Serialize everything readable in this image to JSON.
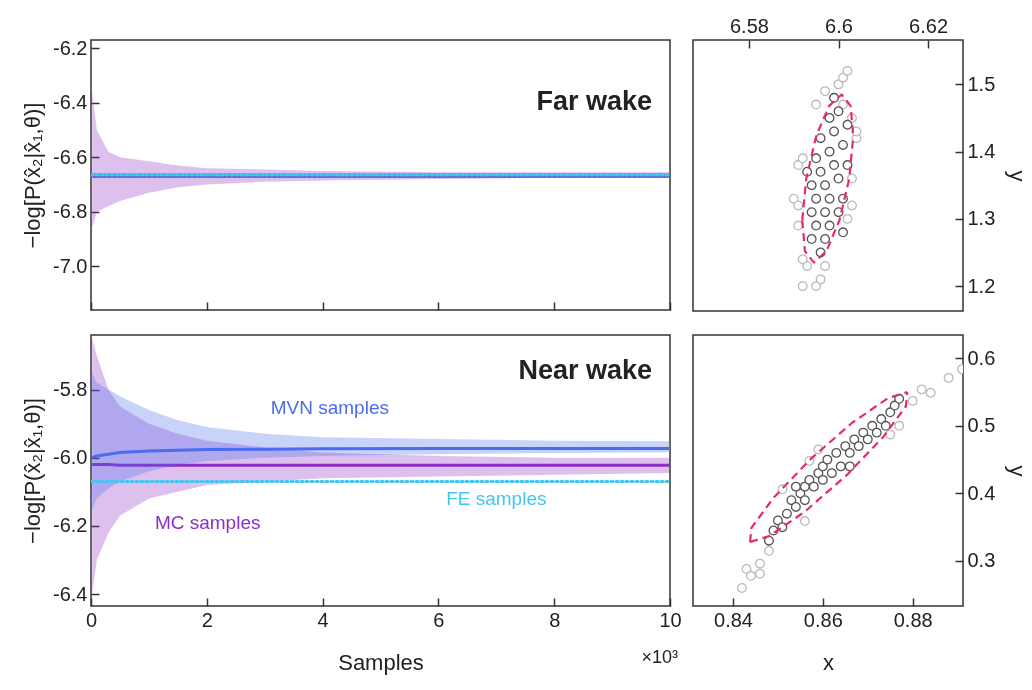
{
  "chart_data": [
    {
      "type": "line",
      "title": "Far wake",
      "ylabel": "−log[P(x̂₂|x̂₁,θ)]",
      "xlim": [
        0,
        10
      ],
      "ylim": [
        -7.16,
        -6.17
      ],
      "xticks": [
        0,
        2,
        4,
        6,
        8,
        10
      ],
      "yticks": [
        {
          "value": -7,
          "label": "-7.0"
        },
        -6.8,
        -6.6,
        -6.4,
        -6.2
      ],
      "tick_labels": "y",
      "series": [
        {
          "color": "#8e2ec8",
          "x": [
            0.02,
            0.1,
            0.3,
            0.5,
            1,
            1.5,
            2,
            3,
            4,
            6,
            8,
            10
          ],
          "values": [
            -6.67,
            -6.67,
            -6.67,
            -6.67,
            -6.67,
            -6.67,
            -6.67,
            -6.67,
            -6.67,
            -6.67,
            -6.67,
            -6.67
          ],
          "lower": [
            -6.86,
            -6.8,
            -6.78,
            -6.76,
            -6.73,
            -6.71,
            -6.7,
            -6.69,
            -6.685,
            -6.68,
            -6.675,
            -6.675
          ],
          "upper": [
            -6.36,
            -6.5,
            -6.58,
            -6.6,
            -6.615,
            -6.63,
            -6.64,
            -6.645,
            -6.65,
            -6.655,
            -6.655,
            -6.655
          ]
        },
        {
          "color": "#4a6cf0",
          "x": [
            0,
            10
          ],
          "values": [
            -6.665,
            -6.665
          ]
        },
        {
          "color": "#3ec8f0",
          "x": [
            0,
            10
          ],
          "values": [
            -6.665,
            -6.665
          ],
          "line_style": "dotted"
        }
      ]
    },
    {
      "type": "scatter",
      "ylabel": "y",
      "xlim": [
        6.5675,
        6.6278
      ],
      "ylim": [
        1.163,
        1.566
      ],
      "xticks": [
        6.58,
        6.6,
        6.62
      ],
      "yticks": [
        1.2,
        1.3,
        1.4,
        1.5
      ],
      "marker": "circle",
      "series": [
        {
          "color": "#bbbbbb",
          "x": [
            6.592,
            6.595,
            6.596,
            6.593,
            6.592,
            6.597,
            6.59,
            6.591,
            6.591,
            6.592,
            6.591,
            6.602,
            6.603,
            6.603,
            6.604,
            6.604,
            6.603,
            6.601,
            6.6,
            6.597,
            6.601,
            6.602,
            6.595
          ],
          "values": [
            1.2,
            1.2,
            1.21,
            1.23,
            1.24,
            1.23,
            1.33,
            1.32,
            1.38,
            1.39,
            1.29,
            1.3,
            1.32,
            1.36,
            1.42,
            1.43,
            1.45,
            1.47,
            1.5,
            1.49,
            1.51,
            1.52,
            1.47
          ]
        },
        {
          "color": "#555555",
          "x": [
            6.596,
            6.597,
            6.595,
            6.598,
            6.594,
            6.597,
            6.6,
            6.595,
            6.598,
            6.601,
            6.594,
            6.597,
            6.6,
            6.596,
            6.599,
            6.602,
            6.595,
            6.598,
            6.601,
            6.596,
            6.599,
            6.602,
            6.598,
            6.6,
            6.599,
            6.594,
            6.601,
            6.593
          ],
          "values": [
            1.25,
            1.27,
            1.29,
            1.29,
            1.31,
            1.31,
            1.31,
            1.33,
            1.33,
            1.33,
            1.35,
            1.35,
            1.36,
            1.37,
            1.38,
            1.38,
            1.39,
            1.4,
            1.41,
            1.42,
            1.43,
            1.44,
            1.45,
            1.46,
            1.48,
            1.27,
            1.28,
            1.37
          ]
        },
        {
          "type": "line",
          "marker": "none",
          "color": "#e8287a",
          "line_style": "dashed",
          "x": [
            6.5919,
            6.5928,
            6.595,
            6.5979,
            6.6007,
            6.6027,
            6.6033
          ],
          "values": [
            1.298,
            1.36,
            1.423,
            1.468,
            1.485,
            1.468,
            1.423
          ]
        },
        {
          "type": "line",
          "marker": "none",
          "color": "#e8287a",
          "line_style": "dashed",
          "x": [
            6.5919,
            6.5925,
            6.5945,
            6.5973,
            6.6002,
            6.6024,
            6.6033
          ],
          "values": [
            1.298,
            1.252,
            1.235,
            1.252,
            1.298,
            1.36,
            1.423
          ]
        }
      ]
    },
    {
      "type": "line",
      "title": "Near wake",
      "xlabel": "Samples",
      "ylabel": "−log[P(x̂₂|x̂₁,θ)]",
      "xlim": [
        0,
        10
      ],
      "ylim": [
        -6.435,
        -5.64
      ],
      "xticks": [
        0,
        2,
        4,
        6,
        8,
        10
      ],
      "yticks": [
        -6.4,
        -6.2,
        {
          "value": -6,
          "label": "-6.0"
        },
        -5.8
      ],
      "annotations": [
        "×10³"
      ],
      "series": [
        {
          "name": "MC samples",
          "color": "#8e2ec8",
          "x": [
            0.02,
            0.1,
            0.3,
            0.5,
            1,
            1.5,
            2,
            3,
            4,
            6,
            8,
            10
          ],
          "values": [
            -6.02,
            -6.02,
            -6.02,
            -6.022,
            -6.022,
            -6.022,
            -6.022,
            -6.022,
            -6.022,
            -6.022,
            -6.022,
            -6.022
          ],
          "lower": [
            -6.4,
            -6.3,
            -6.22,
            -6.17,
            -6.12,
            -6.1,
            -6.08,
            -6.07,
            -6.06,
            -6.055,
            -6.05,
            -6.045
          ],
          "upper": [
            -5.65,
            -5.7,
            -5.8,
            -5.85,
            -5.9,
            -5.93,
            -5.95,
            -5.97,
            -5.985,
            -5.995,
            -6.0,
            -6.0
          ]
        },
        {
          "name": "MVN samples",
          "color": "#4a6cf0",
          "x": [
            0.02,
            0.1,
            0.3,
            0.5,
            1,
            1.5,
            2,
            3,
            4,
            6,
            8,
            10
          ],
          "values": [
            -6.0,
            -5.995,
            -5.99,
            -5.985,
            -5.98,
            -5.978,
            -5.976,
            -5.975,
            -5.974,
            -5.973,
            -5.973,
            -5.973
          ],
          "lower": [
            -6.15,
            -6.12,
            -6.09,
            -6.07,
            -6.04,
            -6.02,
            -6.01,
            -6.0,
            -5.995,
            -5.99,
            -5.986,
            -5.984
          ],
          "upper": [
            -5.75,
            -5.78,
            -5.8,
            -5.82,
            -5.86,
            -5.89,
            -5.91,
            -5.93,
            -5.94,
            -5.945,
            -5.95,
            -5.952
          ]
        },
        {
          "name": "FE samples",
          "color": "#3ec8f0",
          "x": [
            0,
            10
          ],
          "values": [
            -6.07,
            -6.07
          ],
          "line_style": "dotted"
        }
      ]
    },
    {
      "type": "scatter",
      "xlabel": "x",
      "ylabel": "y",
      "xlim": [
        0.8311,
        0.8912
      ],
      "ylim": [
        0.2333,
        0.6345
      ],
      "xticks": [
        0.84,
        0.86,
        0.88
      ],
      "yticks": [
        0.3,
        0.4,
        0.5,
        0.6
      ],
      "marker": "circle",
      "series": [
        {
          "color": "#bbbbbb",
          "x": [
            0.842,
            0.843,
            0.844,
            0.846,
            0.846,
            0.848,
            0.891,
            0.888,
            0.884,
            0.882,
            0.88,
            0.877,
            0.875,
            0.859,
            0.857,
            0.851,
            0.856
          ],
          "values": [
            0.26,
            0.288,
            0.278,
            0.281,
            0.296,
            0.315,
            0.584,
            0.571,
            0.549,
            0.554,
            0.537,
            0.5,
            0.487,
            0.465,
            0.448,
            0.406,
            0.359
          ]
        },
        {
          "color": "#555555",
          "x": [
            0.848,
            0.849,
            0.85,
            0.851,
            0.852,
            0.853,
            0.854,
            0.855,
            0.856,
            0.856,
            0.857,
            0.858,
            0.859,
            0.86,
            0.86,
            0.861,
            0.862,
            0.863,
            0.864,
            0.865,
            0.866,
            0.867,
            0.868,
            0.869,
            0.87,
            0.871,
            0.872,
            0.873,
            0.874,
            0.875,
            0.876,
            0.877,
            0.854,
            0.866
          ],
          "values": [
            0.33,
            0.345,
            0.36,
            0.35,
            0.37,
            0.39,
            0.38,
            0.4,
            0.41,
            0.39,
            0.42,
            0.41,
            0.43,
            0.44,
            0.42,
            0.45,
            0.43,
            0.46,
            0.44,
            0.47,
            0.46,
            0.48,
            0.47,
            0.49,
            0.48,
            0.5,
            0.49,
            0.51,
            0.5,
            0.52,
            0.53,
            0.54,
            0.41,
            0.44
          ]
        },
        {
          "type": "line",
          "marker": "none",
          "color": "#e8287a",
          "line_style": "dashed",
          "x": [
            0.8438,
            0.8441,
            0.8491,
            0.8573,
            0.8666,
            0.8745,
            0.8788
          ],
          "values": [
            0.328,
            0.349,
            0.394,
            0.451,
            0.505,
            0.541,
            0.55
          ]
        },
        {
          "type": "line",
          "marker": "none",
          "color": "#e8287a",
          "line_style": "dashed",
          "x": [
            0.8438,
            0.8481,
            0.856,
            0.8653,
            0.8735,
            0.8785,
            0.8788
          ],
          "values": [
            0.328,
            0.337,
            0.373,
            0.427,
            0.484,
            0.529,
            0.55
          ]
        }
      ]
    }
  ]
}
